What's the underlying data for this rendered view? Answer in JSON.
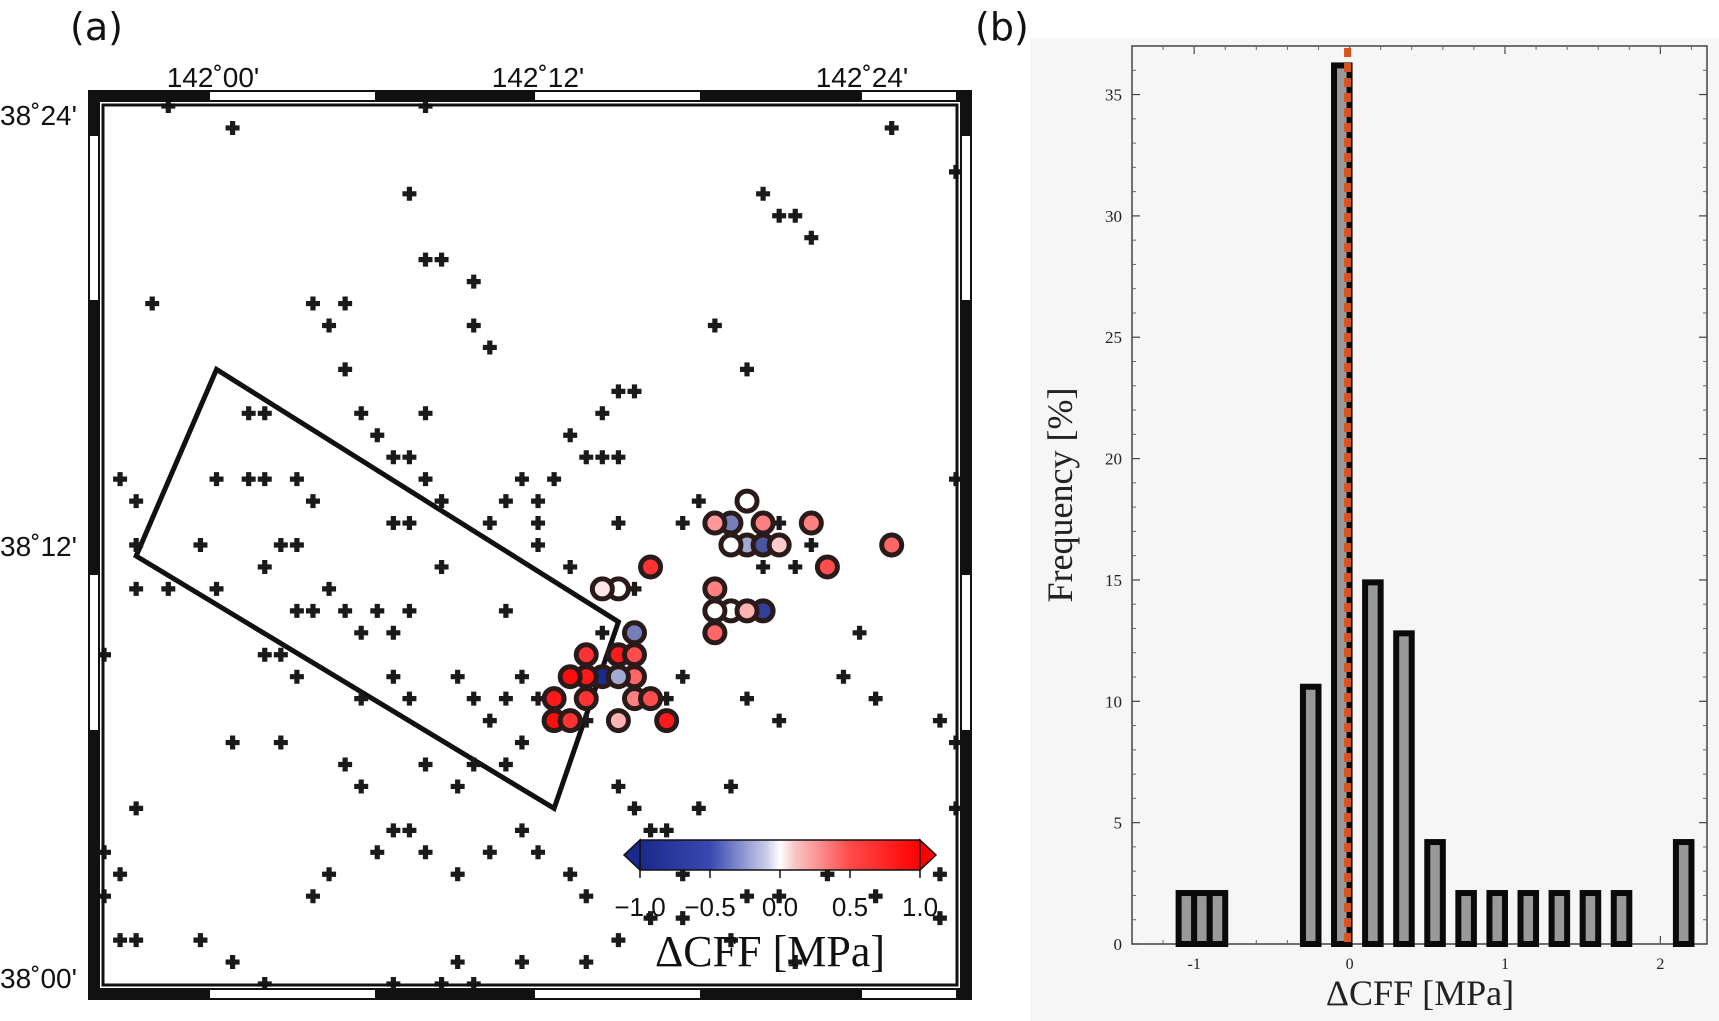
{
  "panels": {
    "a_label": "(a)",
    "b_label": "(b)"
  },
  "colors": {
    "frame": "#111111",
    "negative": "#1e2f8f",
    "zero": "#ffffff",
    "positive": "#ff0000",
    "bar_fill": "#999999",
    "zero_line": "#d9531e",
    "hist_bg": "#f6f6f6"
  },
  "map": {
    "lon_ticks": [
      "142˚00'",
      "142˚12'",
      "142˚24'"
    ],
    "lat_ticks": [
      "38˚24'",
      "38˚12'",
      "38˚00'"
    ],
    "lon_range": [
      141.94,
      142.47
    ],
    "lat_range": [
      38.0,
      38.4
    ],
    "marker": "plus-icon",
    "fault_outline": [
      [
        141.96,
        38.195
      ],
      [
        142.01,
        38.28
      ],
      [
        142.26,
        38.165
      ],
      [
        142.22,
        38.08
      ]
    ],
    "aftershocks": [
      [
        141.98,
        38.4
      ],
      [
        142.02,
        38.39
      ],
      [
        142.14,
        38.4
      ],
      [
        142.43,
        38.39
      ],
      [
        142.47,
        38.37
      ],
      [
        142.13,
        38.36
      ],
      [
        142.35,
        38.36
      ],
      [
        142.36,
        38.35
      ],
      [
        142.37,
        38.35
      ],
      [
        142.38,
        38.34
      ],
      [
        142.14,
        38.33
      ],
      [
        142.15,
        38.33
      ],
      [
        142.17,
        38.32
      ],
      [
        141.97,
        38.31
      ],
      [
        142.07,
        38.31
      ],
      [
        142.08,
        38.3
      ],
      [
        142.09,
        38.31
      ],
      [
        142.17,
        38.3
      ],
      [
        142.18,
        38.29
      ],
      [
        142.32,
        38.3
      ],
      [
        142.09,
        38.28
      ],
      [
        142.34,
        38.28
      ],
      [
        142.03,
        38.26
      ],
      [
        142.04,
        38.26
      ],
      [
        142.1,
        38.26
      ],
      [
        142.14,
        38.26
      ],
      [
        142.25,
        38.26
      ],
      [
        142.26,
        38.27
      ],
      [
        142.27,
        38.27
      ],
      [
        142.11,
        38.25
      ],
      [
        142.12,
        38.24
      ],
      [
        142.13,
        38.24
      ],
      [
        142.23,
        38.25
      ],
      [
        142.24,
        38.24
      ],
      [
        142.25,
        38.24
      ],
      [
        142.26,
        38.24
      ],
      [
        142.01,
        38.23
      ],
      [
        142.03,
        38.23
      ],
      [
        142.04,
        38.23
      ],
      [
        142.06,
        38.23
      ],
      [
        142.07,
        38.22
      ],
      [
        142.14,
        38.23
      ],
      [
        142.15,
        38.22
      ],
      [
        142.19,
        38.22
      ],
      [
        142.2,
        38.23
      ],
      [
        142.21,
        38.22
      ],
      [
        142.22,
        38.23
      ],
      [
        142.47,
        38.23
      ],
      [
        141.95,
        38.23
      ],
      [
        141.96,
        38.22
      ],
      [
        142.12,
        38.21
      ],
      [
        142.13,
        38.21
      ],
      [
        142.18,
        38.21
      ],
      [
        142.21,
        38.21
      ],
      [
        142.26,
        38.21
      ],
      [
        142.3,
        38.21
      ],
      [
        142.31,
        38.22
      ],
      [
        142.33,
        38.21
      ],
      [
        142.36,
        38.21
      ],
      [
        142.38,
        38.2
      ],
      [
        141.96,
        38.2
      ],
      [
        142.0,
        38.2
      ],
      [
        142.05,
        38.2
      ],
      [
        142.06,
        38.2
      ],
      [
        142.04,
        38.19
      ],
      [
        142.15,
        38.19
      ],
      [
        142.21,
        38.2
      ],
      [
        142.23,
        38.19
      ],
      [
        142.26,
        38.18
      ],
      [
        142.27,
        38.18
      ],
      [
        142.35,
        38.19
      ],
      [
        142.37,
        38.19
      ],
      [
        141.96,
        38.18
      ],
      [
        141.98,
        38.18
      ],
      [
        142.01,
        38.18
      ],
      [
        142.06,
        38.17
      ],
      [
        142.07,
        38.17
      ],
      [
        142.08,
        38.18
      ],
      [
        142.09,
        38.17
      ],
      [
        142.1,
        38.16
      ],
      [
        142.11,
        38.17
      ],
      [
        142.12,
        38.16
      ],
      [
        142.13,
        38.17
      ],
      [
        142.19,
        38.17
      ],
      [
        142.25,
        38.16
      ],
      [
        142.27,
        38.16
      ],
      [
        142.41,
        38.16
      ],
      [
        141.94,
        38.15
      ],
      [
        142.04,
        38.15
      ],
      [
        142.05,
        38.15
      ],
      [
        142.06,
        38.14
      ],
      [
        142.1,
        38.13
      ],
      [
        142.12,
        38.14
      ],
      [
        142.13,
        38.13
      ],
      [
        142.16,
        38.14
      ],
      [
        142.17,
        38.13
      ],
      [
        142.18,
        38.12
      ],
      [
        142.19,
        38.13
      ],
      [
        142.2,
        38.14
      ],
      [
        142.21,
        38.13
      ],
      [
        142.22,
        38.12
      ],
      [
        142.24,
        38.12
      ],
      [
        142.29,
        38.13
      ],
      [
        142.3,
        38.14
      ],
      [
        142.34,
        38.13
      ],
      [
        142.36,
        38.12
      ],
      [
        142.4,
        38.14
      ],
      [
        142.42,
        38.13
      ],
      [
        142.46,
        38.12
      ],
      [
        142.47,
        38.11
      ],
      [
        142.02,
        38.11
      ],
      [
        142.05,
        38.11
      ],
      [
        142.09,
        38.1
      ],
      [
        142.1,
        38.09
      ],
      [
        142.14,
        38.1
      ],
      [
        142.16,
        38.09
      ],
      [
        142.17,
        38.1
      ],
      [
        142.19,
        38.1
      ],
      [
        142.2,
        38.11
      ],
      [
        142.26,
        38.09
      ],
      [
        142.27,
        38.08
      ],
      [
        142.28,
        38.07
      ],
      [
        142.29,
        38.07
      ],
      [
        142.31,
        38.08
      ],
      [
        142.33,
        38.09
      ],
      [
        142.47,
        38.08
      ],
      [
        141.96,
        38.08
      ],
      [
        142.11,
        38.06
      ],
      [
        142.12,
        38.07
      ],
      [
        142.13,
        38.07
      ],
      [
        142.14,
        38.06
      ],
      [
        142.16,
        38.05
      ],
      [
        142.18,
        38.06
      ],
      [
        142.2,
        38.07
      ],
      [
        142.21,
        38.06
      ],
      [
        142.23,
        38.05
      ],
      [
        142.24,
        38.04
      ],
      [
        142.28,
        38.03
      ],
      [
        142.3,
        38.05
      ],
      [
        142.33,
        38.06
      ],
      [
        142.34,
        38.04
      ],
      [
        142.36,
        38.04
      ],
      [
        142.39,
        38.05
      ],
      [
        142.42,
        38.04
      ],
      [
        142.46,
        38.05
      ],
      [
        141.94,
        38.06
      ],
      [
        141.95,
        38.05
      ],
      [
        141.94,
        38.04
      ],
      [
        142.3,
        38.03
      ],
      [
        142.33,
        38.02
      ],
      [
        142.37,
        38.01
      ],
      [
        142.46,
        38.03
      ],
      [
        141.96,
        38.02
      ],
      [
        141.95,
        38.02
      ],
      [
        142.0,
        38.02
      ],
      [
        142.02,
        38.01
      ],
      [
        142.04,
        38.0
      ],
      [
        142.12,
        38.0
      ],
      [
        142.15,
        38.0
      ],
      [
        142.16,
        38.01
      ],
      [
        142.17,
        38.0
      ],
      [
        142.2,
        38.01
      ],
      [
        142.24,
        38.01
      ],
      [
        142.26,
        38.02
      ],
      [
        142.08,
        38.05
      ],
      [
        142.07,
        38.04
      ]
    ],
    "colored_events": [
      [
        142.33,
        38.21,
        -0.6
      ],
      [
        142.34,
        38.22,
        0.0
      ],
      [
        142.35,
        38.21,
        0.5
      ],
      [
        142.32,
        38.21,
        0.4
      ],
      [
        142.38,
        38.21,
        0.5
      ],
      [
        142.34,
        38.2,
        -0.4
      ],
      [
        142.35,
        38.2,
        -0.8
      ],
      [
        142.36,
        38.2,
        0.2
      ],
      [
        142.33,
        38.2,
        0.0
      ],
      [
        142.43,
        38.2,
        0.6
      ],
      [
        142.39,
        38.19,
        0.7
      ],
      [
        142.28,
        38.19,
        0.8
      ],
      [
        142.26,
        38.18,
        0.0
      ],
      [
        142.25,
        38.18,
        0.1
      ],
      [
        142.32,
        38.18,
        0.5
      ],
      [
        142.35,
        38.17,
        -0.9
      ],
      [
        142.33,
        38.17,
        0.0
      ],
      [
        142.32,
        38.17,
        0.0
      ],
      [
        142.27,
        38.16,
        -0.6
      ],
      [
        142.34,
        38.17,
        0.3
      ],
      [
        142.32,
        38.16,
        0.6
      ],
      [
        142.24,
        38.15,
        0.8
      ],
      [
        142.26,
        38.15,
        0.9
      ],
      [
        142.27,
        38.15,
        0.7
      ],
      [
        142.25,
        38.14,
        -1.0
      ],
      [
        142.24,
        38.14,
        0.9
      ],
      [
        142.23,
        38.14,
        0.95
      ],
      [
        142.27,
        38.14,
        0.6
      ],
      [
        142.26,
        38.14,
        -0.4
      ],
      [
        142.22,
        38.13,
        0.9
      ],
      [
        142.24,
        38.13,
        0.8
      ],
      [
        142.27,
        38.13,
        0.5
      ],
      [
        142.28,
        38.13,
        0.7
      ],
      [
        142.29,
        38.12,
        0.9
      ],
      [
        142.22,
        38.12,
        0.95
      ],
      [
        142.23,
        38.12,
        0.8
      ],
      [
        142.26,
        38.12,
        0.3
      ]
    ]
  },
  "colorbar": {
    "ticks": [
      "−1.0",
      "−0.5",
      "0.0",
      "0.5",
      "1.0"
    ],
    "title": "ΔCFF [MPa]",
    "range": [
      -1.0,
      1.0
    ]
  },
  "chart_data": {
    "type": "bar",
    "xlabel": "ΔCFF [MPa]",
    "ylabel": "Frequency [%]",
    "xlim": [
      -1.4,
      2.3
    ],
    "ylim": [
      0,
      37
    ],
    "x_ticks": [
      "-1",
      "0",
      "1",
      "2"
    ],
    "y_ticks": [
      "0",
      "5",
      "10",
      "15",
      "20",
      "25",
      "30",
      "35"
    ],
    "bin_width": 0.1,
    "bins": [
      {
        "x0": -1.1,
        "value": 2.1
      },
      {
        "x0": -1.0,
        "value": 2.1
      },
      {
        "x0": -0.9,
        "value": 2.1
      },
      {
        "x0": -0.3,
        "value": 10.6
      },
      {
        "x0": -0.1,
        "value": 36.2
      },
      {
        "x0": 0.1,
        "value": 14.9
      },
      {
        "x0": 0.3,
        "value": 12.8
      },
      {
        "x0": 0.5,
        "value": 4.2
      },
      {
        "x0": 0.7,
        "value": 2.1
      },
      {
        "x0": 0.9,
        "value": 2.1
      },
      {
        "x0": 1.1,
        "value": 2.1
      },
      {
        "x0": 1.3,
        "value": 2.1
      },
      {
        "x0": 1.5,
        "value": 2.1
      },
      {
        "x0": 1.7,
        "value": 2.1
      },
      {
        "x0": 2.1,
        "value": 4.2
      }
    ],
    "zero_line_x": 0.0
  }
}
